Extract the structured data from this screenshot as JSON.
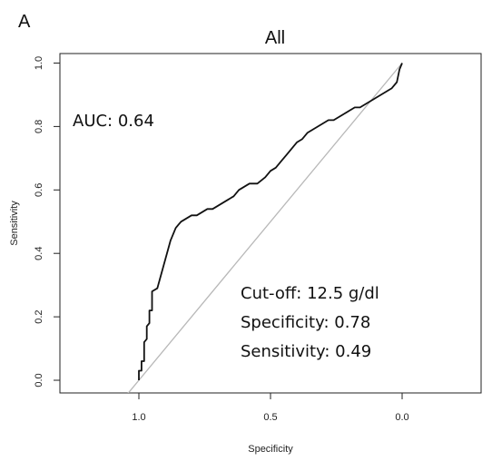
{
  "panel_label": "A",
  "annotations": {
    "auc": "AUC: 0.64",
    "cutoff": "Cut-off: 12.5 g/dl",
    "specificity": "Specificity: 0.78",
    "sensitivity": "Sensitivity: 0.49"
  },
  "colors": {
    "roc": "#111111",
    "reference": "#b8b8b8"
  },
  "chart_data": {
    "type": "line",
    "title": "All",
    "xlabel": "Specificity",
    "ylabel": "Sensitivity",
    "xlim": [
      1.3,
      -0.3
    ],
    "ylim": [
      -0.04,
      1.03
    ],
    "x_reversed": true,
    "x_ticks": [
      1.0,
      0.5,
      0.0
    ],
    "x_tick_labels": [
      "1.0",
      "0.5",
      "0.0"
    ],
    "y_ticks": [
      0.0,
      0.2,
      0.4,
      0.6,
      0.8,
      1.0
    ],
    "y_tick_labels": [
      "0.0",
      "0.2",
      "0.4",
      "0.6",
      "0.8",
      "1.0"
    ],
    "grid": false,
    "series": [
      {
        "specificity": [
          1.0,
          1.0,
          0.99,
          0.99,
          0.98,
          0.98,
          0.97,
          0.97,
          0.96,
          0.96,
          0.95,
          0.95,
          0.93,
          0.92,
          0.91,
          0.9,
          0.89,
          0.88,
          0.87,
          0.86,
          0.85,
          0.84,
          0.82,
          0.8,
          0.78,
          0.76,
          0.74,
          0.72,
          0.7,
          0.68,
          0.66,
          0.64,
          0.62,
          0.6,
          0.58,
          0.55,
          0.52,
          0.5,
          0.48,
          0.46,
          0.44,
          0.42,
          0.4,
          0.38,
          0.36,
          0.34,
          0.32,
          0.3,
          0.28,
          0.26,
          0.24,
          0.22,
          0.2,
          0.18,
          0.16,
          0.14,
          0.12,
          0.1,
          0.08,
          0.06,
          0.04,
          0.02,
          0.01,
          0.0
        ],
        "sensitivity": [
          0.0,
          0.03,
          0.03,
          0.06,
          0.06,
          0.12,
          0.13,
          0.17,
          0.18,
          0.22,
          0.22,
          0.28,
          0.29,
          0.32,
          0.35,
          0.38,
          0.41,
          0.44,
          0.46,
          0.48,
          0.49,
          0.5,
          0.51,
          0.52,
          0.52,
          0.53,
          0.54,
          0.54,
          0.55,
          0.56,
          0.57,
          0.58,
          0.6,
          0.61,
          0.62,
          0.62,
          0.64,
          0.66,
          0.67,
          0.69,
          0.71,
          0.73,
          0.75,
          0.76,
          0.78,
          0.79,
          0.8,
          0.81,
          0.82,
          0.82,
          0.83,
          0.84,
          0.85,
          0.86,
          0.86,
          0.87,
          0.88,
          0.89,
          0.9,
          0.91,
          0.92,
          0.94,
          0.98,
          1.0
        ]
      }
    ],
    "reference_line": {
      "specificity": [
        1.05,
        0.0
      ],
      "sensitivity": [
        -0.05,
        1.0
      ]
    }
  }
}
